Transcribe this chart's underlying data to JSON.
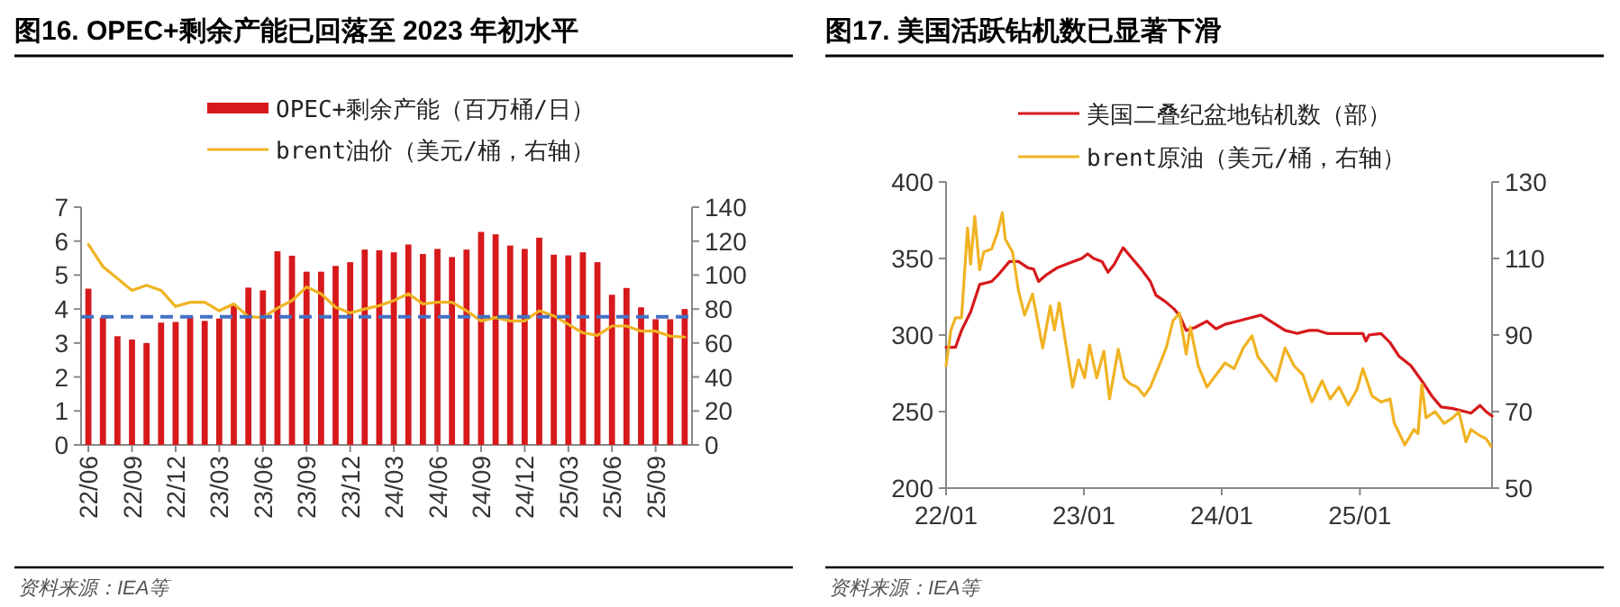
{
  "chart_data": [
    {
      "type": "bar",
      "title": "图16. OPEC+剩余产能已回落至 2023 年初水平",
      "categories": [
        "22/06",
        null,
        null,
        "22/09",
        null,
        null,
        "22/12",
        null,
        null,
        "23/03",
        null,
        null,
        "23/06",
        null,
        null,
        "23/09",
        null,
        null,
        "23/12",
        null,
        null,
        "24/03",
        null,
        null,
        "24/06",
        null,
        null,
        "24/09",
        null,
        null,
        "24/12",
        null,
        null,
        "25/03",
        null,
        null,
        "25/06",
        null,
        null,
        "25/09",
        null,
        null
      ],
      "series": [
        {
          "name": "OPEC+剩余产能（百万桶/日）",
          "color": "#d7191c",
          "values": [
            4.6,
            3.75,
            3.2,
            3.1,
            3.0,
            3.6,
            3.62,
            3.78,
            3.65,
            3.72,
            4.1,
            4.63,
            4.55,
            5.7,
            5.57,
            5.1,
            5.1,
            5.27,
            5.38,
            5.75,
            5.73,
            5.67,
            5.9,
            5.62,
            5.77,
            5.53,
            5.75,
            6.27,
            6.2,
            5.87,
            5.77,
            6.1,
            5.6,
            5.58,
            5.67,
            5.38,
            4.42,
            4.62,
            4.05,
            3.7,
            3.7,
            4.0
          ]
        },
        {
          "name": "brent油价（美元/桶，右轴）",
          "type": "line",
          "axis": "y2",
          "color": "#f0b323",
          "values": [
            118,
            105,
            98,
            91,
            94,
            91,
            81.5,
            84,
            84,
            79,
            83,
            75.5,
            75,
            80.5,
            85,
            93,
            89,
            81,
            77.7,
            80,
            82,
            85,
            89,
            83,
            84,
            84,
            79,
            73,
            75,
            73,
            73,
            79,
            76,
            71,
            66,
            64.5,
            70,
            70,
            67,
            67,
            64,
            63.5
          ]
        }
      ],
      "ylim": [
        0,
        7
      ],
      "yticks": [
        0,
        1,
        2,
        3,
        4,
        5,
        6,
        7
      ],
      "y2lim": [
        0,
        140
      ],
      "y2ticks": [
        0,
        20,
        40,
        60,
        80,
        100,
        120,
        140
      ],
      "ref_lines": [
        {
          "axis": "y",
          "value": 3.77,
          "color": "#4472c4",
          "line_style": "dashed"
        }
      ],
      "legend": "top",
      "annotations": [
        "资料来源：IEA等"
      ]
    },
    {
      "type": "line",
      "title": "图17. 美国活跃钻机数已显著下滑",
      "series": [
        {
          "name": "美国二叠纪盆地钻机数（部）",
          "color": "#d7191c",
          "x": [
            "2022-01-01",
            "2022-01-26",
            "2022-02-11",
            "2022-03-07",
            "2022-03-31",
            "2022-05-02",
            "2022-05-18",
            "2022-06-18",
            "2022-07-12",
            "2022-08-05",
            "2022-08-21",
            "2022-09-03",
            "2022-09-22",
            "2022-10-23",
            "2022-11-24",
            "2022-12-26",
            "2023-01-11",
            "2023-01-27",
            "2023-02-18",
            "2023-03-06",
            "2023-03-22",
            "2023-04-15",
            "2023-05-09",
            "2023-06-02",
            "2023-06-26",
            "2023-07-11",
            "2023-08-04",
            "2023-08-28",
            "2023-09-13",
            "2023-09-29",
            "2023-10-23",
            "2023-11-23",
            "2023-12-17",
            "2024-01-10",
            "2024-02-11",
            "2024-03-14",
            "2024-04-14",
            "2024-05-16",
            "2024-06-17",
            "2024-07-19",
            "2024-08-19",
            "2024-09-12",
            "2024-10-06",
            "2024-11-07",
            "2024-12-09",
            "2025-01-09",
            "2025-01-17",
            "2025-01-25",
            "2025-02-26",
            "2025-03-22",
            "2025-04-15",
            "2025-05-16",
            "2025-06-17",
            "2025-07-11",
            "2025-08-04",
            "2025-09-04",
            "2025-10-06",
            "2025-10-22",
            "2025-11-15",
            "2025-12-01",
            "2025-12-17"
          ],
          "values": [
            292,
            292,
            303,
            315,
            333,
            335,
            339,
            348,
            348,
            344,
            343,
            335,
            339,
            344,
            347,
            350,
            353,
            350,
            348,
            341,
            346,
            357,
            350,
            343,
            335,
            326,
            322,
            317,
            312,
            303,
            305,
            309,
            304,
            307,
            309,
            311,
            313,
            308,
            303,
            301,
            303,
            303,
            301,
            301,
            301,
            301,
            296,
            300,
            301,
            295,
            286,
            280,
            269,
            260,
            253,
            252,
            250,
            249,
            254,
            250,
            247
          ]
        },
        {
          "name": "brent原油（美元/桶，右轴）",
          "color": "#f0b323",
          "axis": "y2",
          "x": [
            "2022-01-01",
            "2022-01-14",
            "2022-01-26",
            "2022-02-11",
            "2022-02-27",
            "2022-03-07",
            "2022-03-18",
            "2022-03-31",
            "2022-04-11",
            "2022-05-02",
            "2022-05-18",
            "2022-05-30",
            "2022-06-07",
            "2022-06-26",
            "2022-07-12",
            "2022-07-28",
            "2022-08-18",
            "2022-09-14",
            "2022-10-04",
            "2022-10-15",
            "2022-10-28",
            "2022-11-16",
            "2022-12-02",
            "2022-12-18",
            "2023-01-03",
            "2023-01-16",
            "2023-02-04",
            "2023-02-23",
            "2023-03-10",
            "2023-04-02",
            "2023-04-18",
            "2023-05-04",
            "2023-05-22",
            "2023-06-10",
            "2023-06-26",
            "2023-07-19",
            "2023-08-07",
            "2023-08-25",
            "2023-09-11",
            "2023-09-29",
            "2023-10-10",
            "2023-10-31",
            "2023-11-23",
            "2023-12-17",
            "2024-01-10",
            "2024-02-03",
            "2024-02-27",
            "2024-03-21",
            "2024-04-06",
            "2024-04-30",
            "2024-05-24",
            "2024-06-17",
            "2024-07-11",
            "2024-08-03",
            "2024-08-27",
            "2024-09-23",
            "2024-10-14",
            "2024-11-07",
            "2024-12-01",
            "2024-12-24",
            "2025-01-09",
            "2025-02-02",
            "2025-02-26",
            "2025-03-22",
            "2025-04-02",
            "2025-04-30",
            "2025-05-24",
            "2025-06-04",
            "2025-06-14",
            "2025-06-25",
            "2025-07-19",
            "2025-08-12",
            "2025-09-04",
            "2025-09-20",
            "2025-10-09",
            "2025-10-22",
            "2025-11-15",
            "2025-12-01",
            "2025-12-14"
          ],
          "values": [
            82,
            91.3,
            94.5,
            94.5,
            118,
            108.5,
            121,
            107,
            111.7,
            112.5,
            117,
            122,
            115,
            111.7,
            101.5,
            95.2,
            100.7,
            86.6,
            97.6,
            91.3,
            98.4,
            86.6,
            76.4,
            83.5,
            78.8,
            87.4,
            78.8,
            85.8,
            73.3,
            86.3,
            78.8,
            77.2,
            76.4,
            74.1,
            76.4,
            81.9,
            86.6,
            93.7,
            95.7,
            85,
            92.1,
            81.9,
            76.4,
            79.6,
            82.7,
            81.2,
            86.6,
            89.8,
            84.3,
            81.2,
            78,
            86.6,
            81.9,
            79.6,
            72.5,
            78,
            73.3,
            76.4,
            71.7,
            75.7,
            81.2,
            74.1,
            72.5,
            73.3,
            67,
            61.3,
            65.3,
            64.2,
            77.1,
            68.4,
            70,
            66.9,
            68.4,
            70,
            62.1,
            65.3,
            63.7,
            62.9,
            61
          ]
        }
      ],
      "xlim": [
        "2022-01-01",
        "2025-12-17"
      ],
      "xticks": [
        {
          "value": "2022-01-01",
          "label": "22/01"
        },
        {
          "value": "2023-01-01",
          "label": "23/01"
        },
        {
          "value": "2024-01-01",
          "label": "24/01"
        },
        {
          "value": "2025-01-01",
          "label": "25/01"
        }
      ],
      "ylim": [
        200,
        400
      ],
      "yticks": [
        200,
        250,
        300,
        350,
        400
      ],
      "y2lim": [
        50,
        130
      ],
      "y2ticks": [
        50,
        70,
        90,
        110,
        130
      ],
      "legend": "top",
      "annotations": [
        "资料来源：IEA等"
      ]
    }
  ]
}
